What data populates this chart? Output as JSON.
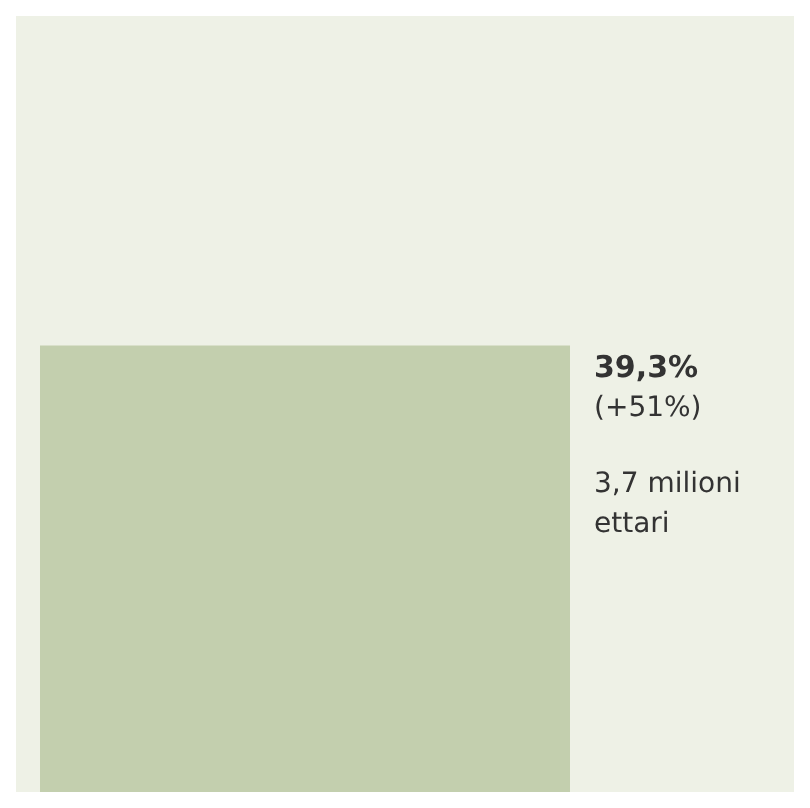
{
  "chart_data": {
    "type": "other",
    "categories": [
      null
    ],
    "values": [
      39.3
    ],
    "color": "#c3cfae",
    "value_labels": [
      "39,3%"
    ],
    "annotations": [
      "(+51%)",
      "3,7 milioni ettari"
    ]
  }
}
